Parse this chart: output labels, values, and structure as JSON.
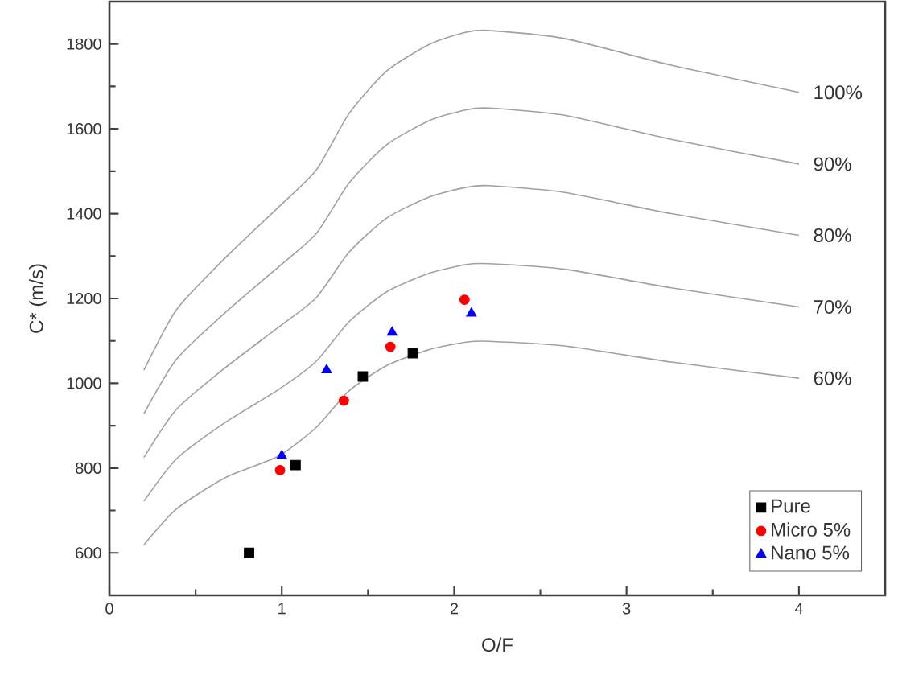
{
  "chart_data": {
    "type": "scatter",
    "xlabel": "O/F",
    "ylabel": "C* (m/s)",
    "xlim": [
      0,
      4.5
    ],
    "ylim": [
      500,
      1900
    ],
    "xticks": [
      0,
      1,
      2,
      3,
      4
    ],
    "yticks": [
      600,
      800,
      1000,
      1200,
      1400,
      1600,
      1800
    ],
    "legend": "bottom right",
    "series": [
      {
        "name": "100%",
        "type": "line",
        "color": "#a0a0a0",
        "marker": "none",
        "x": [
          0.2,
          0.39,
          0.67,
          0.98,
          1.2,
          1.39,
          1.61,
          1.86,
          2.07,
          2.2,
          2.64,
          3.26,
          4.0
        ],
        "values": [
          1031,
          1174,
          1295,
          1415,
          1503,
          1636,
          1737,
          1800,
          1828,
          1832,
          1813,
          1750,
          1686
        ]
      },
      {
        "name": "90%",
        "type": "line",
        "color": "#a0a0a0",
        "marker": "none",
        "x": [
          0.2,
          0.39,
          0.67,
          0.98,
          1.2,
          1.39,
          1.61,
          1.86,
          2.07,
          2.2,
          2.64,
          3.26,
          4.0
        ],
        "values": [
          928,
          1057,
          1166,
          1274,
          1353,
          1472,
          1563,
          1620,
          1645,
          1649,
          1632,
          1575,
          1517
        ]
      },
      {
        "name": "80%",
        "type": "line",
        "color": "#a0a0a0",
        "marker": "none",
        "x": [
          0.2,
          0.39,
          0.67,
          0.98,
          1.2,
          1.39,
          1.61,
          1.86,
          2.07,
          2.2,
          2.64,
          3.26,
          4.0
        ],
        "values": [
          825,
          939,
          1036,
          1132,
          1202,
          1309,
          1390,
          1440,
          1462,
          1466,
          1450,
          1400,
          1349
        ]
      },
      {
        "name": "70%",
        "type": "line",
        "color": "#a0a0a0",
        "marker": "none",
        "x": [
          0.2,
          0.39,
          0.67,
          0.98,
          1.2,
          1.39,
          1.61,
          1.86,
          2.07,
          2.2,
          2.64,
          3.26,
          4.0
        ],
        "values": [
          722,
          822,
          907,
          985,
          1052,
          1145,
          1216,
          1260,
          1280,
          1282,
          1269,
          1225,
          1180
        ]
      },
      {
        "name": "60%",
        "type": "line",
        "color": "#a0a0a0",
        "marker": "none",
        "x": [
          0.2,
          0.39,
          0.67,
          0.98,
          1.2,
          1.39,
          1.61,
          1.86,
          2.07,
          2.2,
          2.64,
          3.26,
          4.0
        ],
        "values": [
          619,
          704,
          777,
          828,
          896,
          982,
          1042,
          1080,
          1097,
          1099,
          1088,
          1050,
          1012
        ]
      },
      {
        "name": "Pure",
        "color": "#000000",
        "marker": "square",
        "x": [
          0.81,
          1.08,
          1.47,
          1.76
        ],
        "values": [
          600,
          807,
          1016,
          1071
        ]
      },
      {
        "name": "Micro 5%",
        "color": "#ff0000",
        "marker": "circle",
        "x": [
          0.99,
          1.36,
          1.63,
          2.06
        ],
        "values": [
          795,
          959,
          1086,
          1197
        ]
      },
      {
        "name": "Nano 5%",
        "color": "#0000ff",
        "marker": "triangle",
        "x": [
          1.0,
          1.26,
          1.64,
          2.1
        ],
        "values": [
          829,
          1031,
          1120,
          1165
        ]
      }
    ]
  }
}
